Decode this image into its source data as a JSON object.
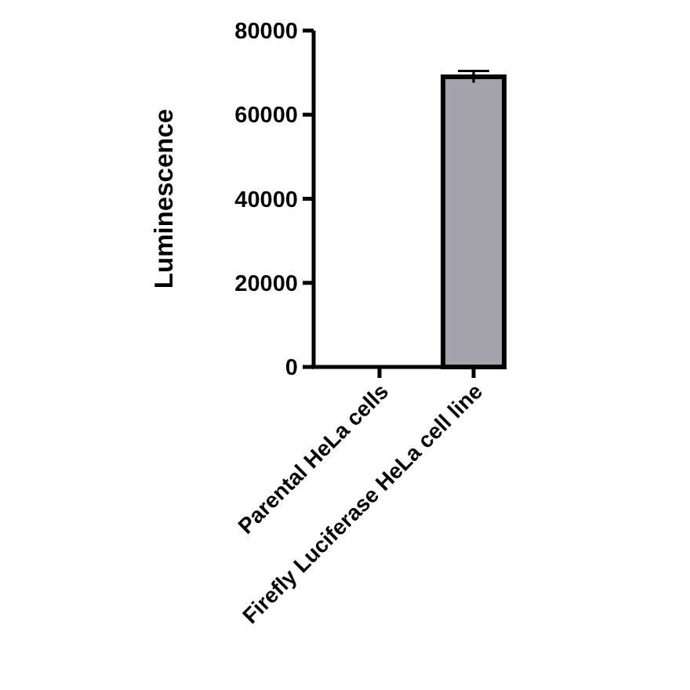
{
  "chart_data": {
    "type": "bar",
    "ylabel": "Luminescence",
    "categories": [
      "Parental HeLa cells",
      "Firefly Luciferase HeLa cell line"
    ],
    "values": [
      0,
      69000
    ],
    "errors": [
      null,
      1400
    ],
    "color": "#a3a3a9",
    "ylim": [
      0,
      80000
    ],
    "yticks": [
      0,
      20000,
      40000,
      60000,
      80000
    ]
  }
}
